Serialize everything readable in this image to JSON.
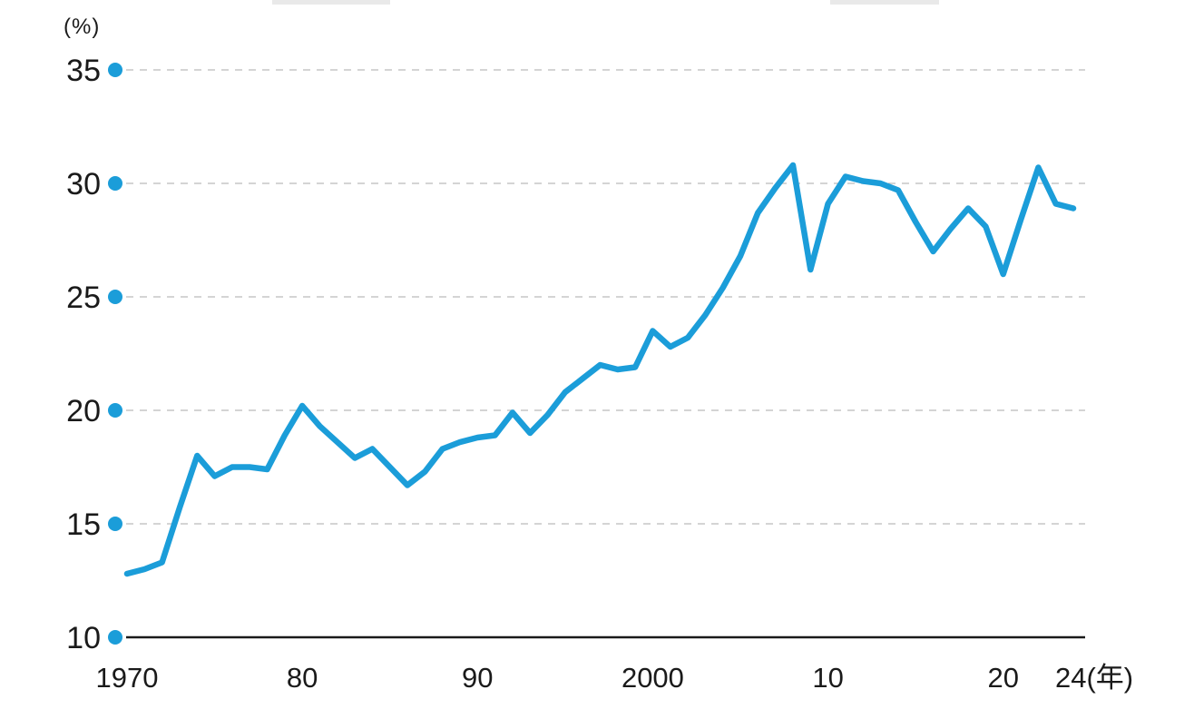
{
  "unit_top_left": "(%)",
  "chart_data": {
    "type": "line",
    "title": "",
    "xlabel": "",
    "ylabel": "(%)",
    "x_unit_suffix": "(年)",
    "xlim": [
      1970,
      2024
    ],
    "ylim": [
      10,
      35
    ],
    "yticks": [
      10,
      15,
      20,
      25,
      30,
      35
    ],
    "xticks": [
      {
        "year": 1970,
        "label": "1970"
      },
      {
        "year": 1980,
        "label": "80"
      },
      {
        "year": 1990,
        "label": "90"
      },
      {
        "year": 2000,
        "label": "2000"
      },
      {
        "year": 2010,
        "label": "10"
      },
      {
        "year": 2020,
        "label": "20"
      },
      {
        "year": 2024,
        "label": "24(年)"
      }
    ],
    "grid": "horizontal-dashed",
    "legend": "none",
    "line_color": "#1b9dd9",
    "dot_color": "#1b9dd9",
    "axis_color": "#1a1a1a",
    "grid_color": "#c6c6c6",
    "text_color": "#1a1a1a",
    "x": [
      1970,
      1971,
      1972,
      1973,
      1974,
      1975,
      1976,
      1977,
      1978,
      1979,
      1980,
      1981,
      1982,
      1983,
      1984,
      1985,
      1986,
      1987,
      1988,
      1989,
      1990,
      1991,
      1992,
      1993,
      1994,
      1995,
      1996,
      1997,
      1998,
      1999,
      2000,
      2001,
      2002,
      2003,
      2004,
      2005,
      2006,
      2007,
      2008,
      2009,
      2010,
      2011,
      2012,
      2013,
      2014,
      2015,
      2016,
      2017,
      2018,
      2019,
      2020,
      2021,
      2022,
      2023,
      2024
    ],
    "series": [
      {
        "name": "ratio_percent",
        "values": [
          12.8,
          13.0,
          13.3,
          15.7,
          18.0,
          17.1,
          17.5,
          17.5,
          17.4,
          18.9,
          20.2,
          19.3,
          18.6,
          17.9,
          18.3,
          17.5,
          16.7,
          17.3,
          18.3,
          18.6,
          18.8,
          18.9,
          19.9,
          19.0,
          19.8,
          20.8,
          21.4,
          22.0,
          21.8,
          21.9,
          23.5,
          22.8,
          23.2,
          24.2,
          25.4,
          26.8,
          28.7,
          29.8,
          30.8,
          26.2,
          29.1,
          30.3,
          30.1,
          30.0,
          29.7,
          28.3,
          27.0,
          28.0,
          28.9,
          28.1,
          26.0,
          28.4,
          30.7,
          29.1,
          28.9
        ]
      }
    ]
  }
}
